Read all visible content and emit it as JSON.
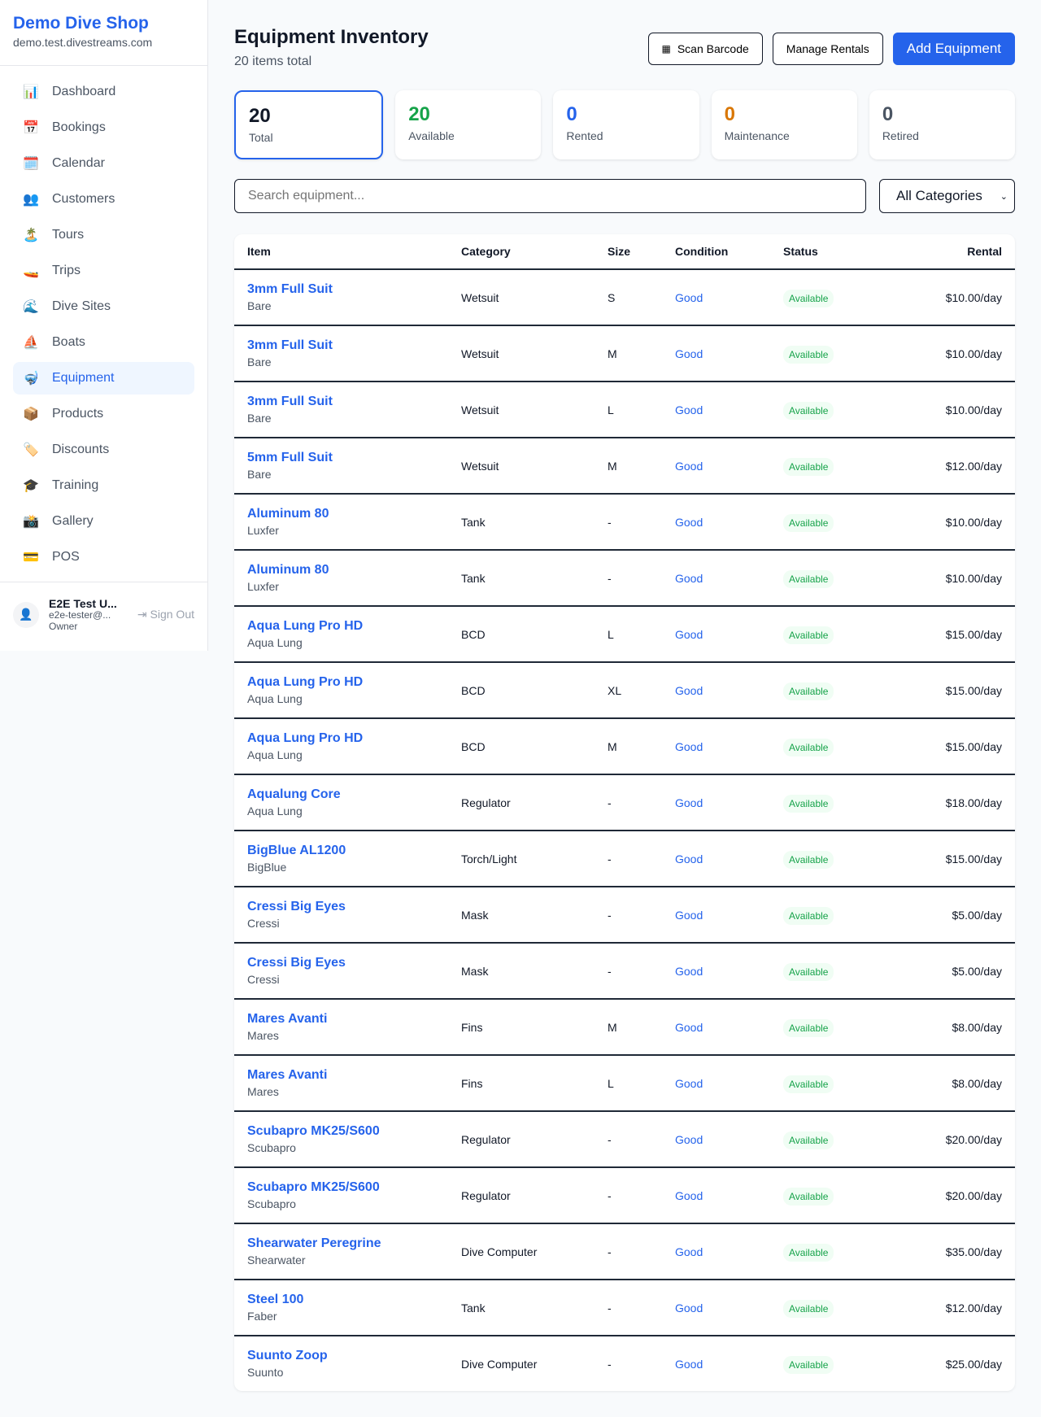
{
  "brand": {
    "title": "Demo Dive Shop",
    "subtitle": "demo.test.divestreams.com"
  },
  "nav": [
    {
      "icon": "📊",
      "label": "Dashboard"
    },
    {
      "icon": "📅",
      "label": "Bookings"
    },
    {
      "icon": "🗓️",
      "label": "Calendar"
    },
    {
      "icon": "👥",
      "label": "Customers"
    },
    {
      "icon": "🏝️",
      "label": "Tours"
    },
    {
      "icon": "🚤",
      "label": "Trips"
    },
    {
      "icon": "🌊",
      "label": "Dive Sites"
    },
    {
      "icon": "⛵",
      "label": "Boats"
    },
    {
      "icon": "🤿",
      "label": "Equipment",
      "active": true
    },
    {
      "icon": "📦",
      "label": "Products"
    },
    {
      "icon": "🏷️",
      "label": "Discounts"
    },
    {
      "icon": "🎓",
      "label": "Training"
    },
    {
      "icon": "📸",
      "label": "Gallery"
    },
    {
      "icon": "💳",
      "label": "POS"
    }
  ],
  "user": {
    "name": "E2E Test U...",
    "email": "e2e-tester@...",
    "role": "Owner",
    "sign_out": "Sign Out"
  },
  "header": {
    "title": "Equipment Inventory",
    "subtitle": "20 items total",
    "scan": "Scan Barcode",
    "manage": "Manage Rentals",
    "add": "Add Equipment"
  },
  "stats": [
    {
      "value": "20",
      "label": "Total",
      "color": "#111827"
    },
    {
      "value": "20",
      "label": "Available",
      "color": "#16a34a"
    },
    {
      "value": "0",
      "label": "Rented",
      "color": "#2563eb"
    },
    {
      "value": "0",
      "label": "Maintenance",
      "color": "#d97706"
    },
    {
      "value": "0",
      "label": "Retired",
      "color": "#4b5563"
    }
  ],
  "filters": {
    "search_placeholder": "Search equipment...",
    "category": "All Categories"
  },
  "table": {
    "columns": [
      "Item",
      "Category",
      "Size",
      "Condition",
      "Status",
      "Rental"
    ],
    "rows": [
      {
        "name": "3mm Full Suit",
        "brand": "Bare",
        "category": "Wetsuit",
        "size": "S",
        "condition": "Good",
        "status": "Available",
        "rental": "$10.00/day"
      },
      {
        "name": "3mm Full Suit",
        "brand": "Bare",
        "category": "Wetsuit",
        "size": "M",
        "condition": "Good",
        "status": "Available",
        "rental": "$10.00/day"
      },
      {
        "name": "3mm Full Suit",
        "brand": "Bare",
        "category": "Wetsuit",
        "size": "L",
        "condition": "Good",
        "status": "Available",
        "rental": "$10.00/day"
      },
      {
        "name": "5mm Full Suit",
        "brand": "Bare",
        "category": "Wetsuit",
        "size": "M",
        "condition": "Good",
        "status": "Available",
        "rental": "$12.00/day"
      },
      {
        "name": "Aluminum 80",
        "brand": "Luxfer",
        "category": "Tank",
        "size": "-",
        "condition": "Good",
        "status": "Available",
        "rental": "$10.00/day"
      },
      {
        "name": "Aluminum 80",
        "brand": "Luxfer",
        "category": "Tank",
        "size": "-",
        "condition": "Good",
        "status": "Available",
        "rental": "$10.00/day"
      },
      {
        "name": "Aqua Lung Pro HD",
        "brand": "Aqua Lung",
        "category": "BCD",
        "size": "L",
        "condition": "Good",
        "status": "Available",
        "rental": "$15.00/day"
      },
      {
        "name": "Aqua Lung Pro HD",
        "brand": "Aqua Lung",
        "category": "BCD",
        "size": "XL",
        "condition": "Good",
        "status": "Available",
        "rental": "$15.00/day"
      },
      {
        "name": "Aqua Lung Pro HD",
        "brand": "Aqua Lung",
        "category": "BCD",
        "size": "M",
        "condition": "Good",
        "status": "Available",
        "rental": "$15.00/day"
      },
      {
        "name": "Aqualung Core",
        "brand": "Aqua Lung",
        "category": "Regulator",
        "size": "-",
        "condition": "Good",
        "status": "Available",
        "rental": "$18.00/day"
      },
      {
        "name": "BigBlue AL1200",
        "brand": "BigBlue",
        "category": "Torch/Light",
        "size": "-",
        "condition": "Good",
        "status": "Available",
        "rental": "$15.00/day"
      },
      {
        "name": "Cressi Big Eyes",
        "brand": "Cressi",
        "category": "Mask",
        "size": "-",
        "condition": "Good",
        "status": "Available",
        "rental": "$5.00/day"
      },
      {
        "name": "Cressi Big Eyes",
        "brand": "Cressi",
        "category": "Mask",
        "size": "-",
        "condition": "Good",
        "status": "Available",
        "rental": "$5.00/day"
      },
      {
        "name": "Mares Avanti",
        "brand": "Mares",
        "category": "Fins",
        "size": "M",
        "condition": "Good",
        "status": "Available",
        "rental": "$8.00/day"
      },
      {
        "name": "Mares Avanti",
        "brand": "Mares",
        "category": "Fins",
        "size": "L",
        "condition": "Good",
        "status": "Available",
        "rental": "$8.00/day"
      },
      {
        "name": "Scubapro MK25/S600",
        "brand": "Scubapro",
        "category": "Regulator",
        "size": "-",
        "condition": "Good",
        "status": "Available",
        "rental": "$20.00/day"
      },
      {
        "name": "Scubapro MK25/S600",
        "brand": "Scubapro",
        "category": "Regulator",
        "size": "-",
        "condition": "Good",
        "status": "Available",
        "rental": "$20.00/day"
      },
      {
        "name": "Shearwater Peregrine",
        "brand": "Shearwater",
        "category": "Dive Computer",
        "size": "-",
        "condition": "Good",
        "status": "Available",
        "rental": "$35.00/day"
      },
      {
        "name": "Steel 100",
        "brand": "Faber",
        "category": "Tank",
        "size": "-",
        "condition": "Good",
        "status": "Available",
        "rental": "$12.00/day"
      },
      {
        "name": "Suunto Zoop",
        "brand": "Suunto",
        "category": "Dive Computer",
        "size": "-",
        "condition": "Good",
        "status": "Available",
        "rental": "$25.00/day"
      }
    ]
  }
}
